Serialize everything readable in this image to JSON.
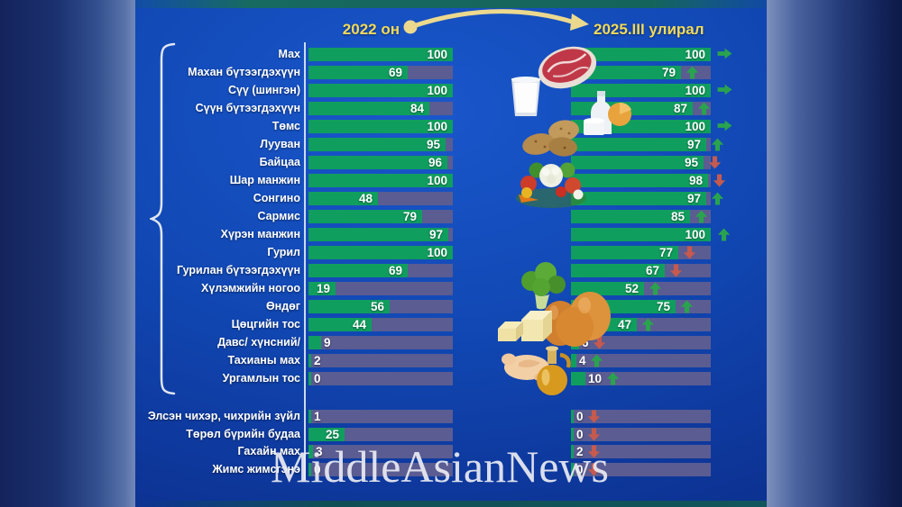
{
  "header": {
    "left_label": "2022 он",
    "right_label": "2025.III улирал"
  },
  "watermark": "MiddleAsianNews",
  "colors": {
    "bar_green": "#109e5e",
    "bar_remainder": "#5a5c92",
    "arrow_up": "#2aa34e",
    "arrow_down": "#c65a4e",
    "arrow_same": "#2aa34e",
    "header_text": "#f2da5b",
    "header_arrow": "#ecd98e",
    "label_text": "#ffffff",
    "panel_blue": "#1148b4",
    "watermark_color": "#e9ebf2"
  },
  "icons": [
    "beef-icon",
    "milk-glass-icon",
    "dairy-products-icon",
    "potatoes-icon",
    "vegetables-icon",
    "broccoli-icon",
    "eggs-icon",
    "butter-icon",
    "chicken-icon",
    "cooking-oil-icon"
  ],
  "chart_data": {
    "type": "bar",
    "orientation": "horizontal",
    "value_range": [
      0,
      100
    ],
    "legend_position": "top",
    "series_names": [
      "2022 он",
      "2025.III улирал"
    ],
    "trend_legend": {
      "up": "green up arrow",
      "down": "red down arrow",
      "same": "green right arrow"
    },
    "rows": [
      {
        "label": "Мах",
        "v2022": 100,
        "v2025": 100,
        "trend": "same",
        "group": 1
      },
      {
        "label": "Махан бүтээгдэхүүн",
        "v2022": 69,
        "v2025": 79,
        "trend": "up",
        "group": 1
      },
      {
        "label": "Сүү (шингэн)",
        "v2022": 100,
        "v2025": 100,
        "trend": "same",
        "group": 1
      },
      {
        "label": "Сүүн бүтээгдэхүүн",
        "v2022": 84,
        "v2025": 87,
        "trend": "up",
        "group": 1
      },
      {
        "label": "Төмс",
        "v2022": 100,
        "v2025": 100,
        "trend": "same",
        "group": 1
      },
      {
        "label": "Лууван",
        "v2022": 95,
        "v2025": 97,
        "trend": "up",
        "group": 1
      },
      {
        "label": "Байцаа",
        "v2022": 96,
        "v2025": 95,
        "trend": "down",
        "group": 1
      },
      {
        "label": "Шар манжин",
        "v2022": 100,
        "v2025": 98,
        "trend": "down",
        "group": 1
      },
      {
        "label": "Сонгино",
        "v2022": 48,
        "v2025": 97,
        "trend": "up",
        "group": 1
      },
      {
        "label": "Сармис",
        "v2022": 79,
        "v2025": 85,
        "trend": "up",
        "group": 1
      },
      {
        "label": "Хүрэн манжин",
        "v2022": 97,
        "v2025": 100,
        "trend": "up",
        "group": 1
      },
      {
        "label": "Гурил",
        "v2022": 100,
        "v2025": 77,
        "trend": "down",
        "group": 1
      },
      {
        "label": "Гурилан бүтээгдэхүүн",
        "v2022": 69,
        "v2025": 67,
        "trend": "down",
        "group": 1
      },
      {
        "label": "Хүлэмжийн ногоо",
        "v2022": 19,
        "v2025": 52,
        "trend": "up",
        "group": 1
      },
      {
        "label": "Өндөг",
        "v2022": 56,
        "v2025": 75,
        "trend": "up",
        "group": 1
      },
      {
        "label": "Цөцгийн тос",
        "v2022": 44,
        "v2025": 47,
        "trend": "up",
        "group": 1
      },
      {
        "label": "Давс/ хүнсний/",
        "v2022": 9,
        "v2025": 6,
        "trend": "down",
        "group": 1
      },
      {
        "label": "Тахианы мах",
        "v2022": 2,
        "v2025": 4,
        "trend": "up",
        "group": 1
      },
      {
        "label": "Ургамлын тос",
        "v2022": 0,
        "v2025": 10,
        "trend": "up",
        "group": 1
      },
      {
        "label": "Элсэн чихэр, чихрийн зүйл",
        "v2022": 1,
        "v2025": 0,
        "trend": "down",
        "group": 2
      },
      {
        "label": "Төрөл бүрийн будаа",
        "v2022": 25,
        "v2025": 0,
        "trend": "down",
        "group": 2
      },
      {
        "label": "Гахайн мах",
        "v2022": 3,
        "v2025": 2,
        "trend": "down",
        "group": 2
      },
      {
        "label": "Жимс жимсгэнэ",
        "v2022": 0,
        "v2025": 0,
        "trend": "down",
        "group": 2
      }
    ]
  }
}
